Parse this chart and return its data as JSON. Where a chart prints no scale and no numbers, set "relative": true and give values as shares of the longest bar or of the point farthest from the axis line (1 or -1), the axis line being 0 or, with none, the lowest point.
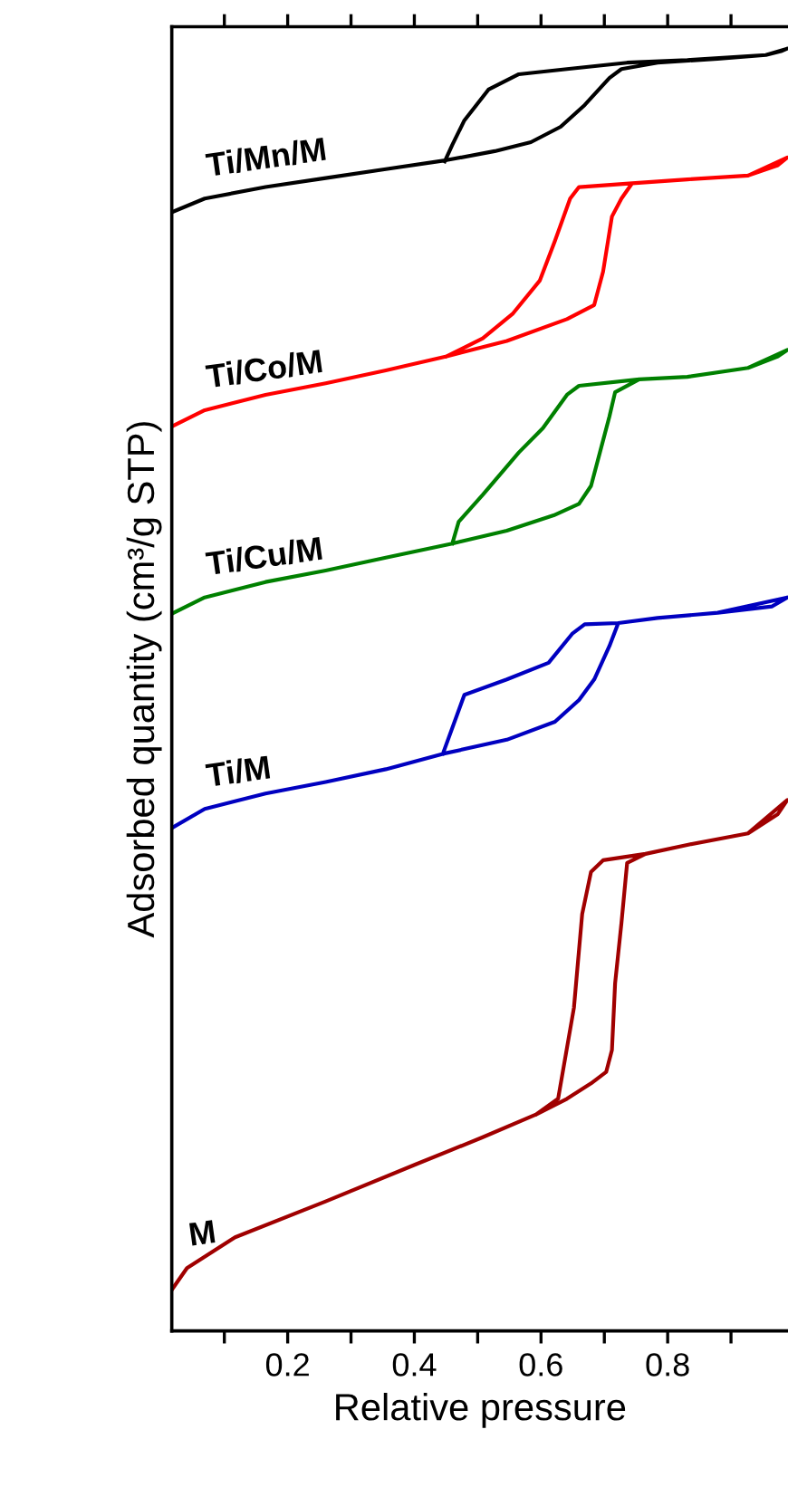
{
  "chart_data": {
    "type": "line",
    "relative": true,
    "xlabel": "Relative pressure",
    "ylabel": "Adsorbed quantity (cm³/g STP)",
    "xlim": [
      0.017,
      0.99
    ],
    "xticks": [
      {
        "value": 0.1,
        "label": null
      },
      0.2,
      {
        "value": 0.3,
        "label": null
      },
      0.4,
      {
        "value": 0.5,
        "label": null
      },
      0.6,
      {
        "value": 0.7,
        "label": null
      },
      0.8,
      {
        "value": 0.9,
        "label": null
      }
    ],
    "tick_labels": "x",
    "grid": false,
    "legend": false,
    "marker": "none",
    "line_style": "solid",
    "series": [
      {
        "name": "Ti/Mn/M",
        "color": "#000000",
        "x": [
          0.02,
          0.069,
          0.165,
          0.26,
          0.355,
          0.451,
          0.527,
          0.584,
          0.631,
          0.669,
          0.708,
          0.727,
          0.784,
          0.879,
          0.955,
          0.979,
          0.989,
          0.955,
          0.831,
          0.736,
          0.641,
          0.565,
          0.517,
          0.479,
          0.46,
          0.448
        ],
        "values": [
          0.873,
          0.883,
          0.892,
          0.899,
          0.906,
          0.913,
          0.92,
          0.927,
          0.939,
          0.956,
          0.977,
          0.984,
          0.989,
          0.992,
          0.995,
          0.998,
          1.0,
          0.995,
          0.991,
          0.989,
          0.984,
          0.98,
          0.968,
          0.944,
          0.925,
          0.912
        ]
      },
      {
        "name": "Ti/Co/M",
        "color": "#ff0000",
        "x": [
          0.02,
          0.069,
          0.165,
          0.26,
          0.355,
          0.451,
          0.546,
          0.641,
          0.684,
          0.698,
          0.712,
          0.727,
          0.744,
          0.831,
          0.927,
          0.974,
          0.989,
          0.927,
          0.831,
          0.744,
          0.66,
          0.646,
          0.622,
          0.598,
          0.555,
          0.508,
          0.451
        ],
        "values": [
          0.706,
          0.718,
          0.73,
          0.739,
          0.749,
          0.76,
          0.772,
          0.789,
          0.8,
          0.826,
          0.869,
          0.883,
          0.895,
          0.898,
          0.901,
          0.909,
          0.915,
          0.901,
          0.898,
          0.895,
          0.892,
          0.883,
          0.85,
          0.819,
          0.793,
          0.774,
          0.76
        ]
      },
      {
        "name": "Ti/Cu/M",
        "color": "#008000",
        "x": [
          0.02,
          0.069,
          0.165,
          0.26,
          0.355,
          0.46,
          0.546,
          0.62,
          0.66,
          0.679,
          0.693,
          0.708,
          0.717,
          0.755,
          0.831,
          0.927,
          0.974,
          0.989,
          0.927,
          0.831,
          0.755,
          0.66,
          0.641,
          0.603,
          0.565,
          0.508,
          0.47,
          0.46
        ],
        "values": [
          0.56,
          0.572,
          0.584,
          0.593,
          0.603,
          0.614,
          0.624,
          0.636,
          0.645,
          0.659,
          0.685,
          0.713,
          0.732,
          0.742,
          0.744,
          0.751,
          0.76,
          0.765,
          0.751,
          0.744,
          0.742,
          0.737,
          0.73,
          0.704,
          0.685,
          0.652,
          0.631,
          0.614
        ]
      },
      {
        "name": "Ti/M",
        "color": "#0000c0",
        "x": [
          0.02,
          0.069,
          0.165,
          0.26,
          0.355,
          0.445,
          0.546,
          0.622,
          0.66,
          0.684,
          0.708,
          0.722,
          0.784,
          0.879,
          0.965,
          0.989,
          0.879,
          0.784,
          0.722,
          0.669,
          0.65,
          0.612,
          0.546,
          0.479,
          0.445
        ],
        "values": [
          0.393,
          0.407,
          0.419,
          0.428,
          0.438,
          0.45,
          0.461,
          0.475,
          0.492,
          0.508,
          0.534,
          0.552,
          0.556,
          0.56,
          0.565,
          0.572,
          0.56,
          0.556,
          0.552,
          0.551,
          0.544,
          0.521,
          0.508,
          0.496,
          0.45
        ]
      },
      {
        "name": "M",
        "color": "#a00000",
        "x": [
          0.017,
          0.041,
          0.117,
          0.26,
          0.403,
          0.508,
          0.593,
          0.641,
          0.679,
          0.703,
          0.712,
          0.717,
          0.727,
          0.736,
          0.765,
          0.831,
          0.927,
          0.974,
          0.989,
          0.927,
          0.831,
          0.765,
          0.698,
          0.679,
          0.665,
          0.652,
          0.627,
          0.593
        ],
        "values": [
          0.032,
          0.049,
          0.073,
          0.101,
          0.13,
          0.151,
          0.169,
          0.181,
          0.193,
          0.202,
          0.219,
          0.271,
          0.318,
          0.365,
          0.372,
          0.379,
          0.388,
          0.403,
          0.414,
          0.388,
          0.379,
          0.372,
          0.367,
          0.358,
          0.325,
          0.252,
          0.181,
          0.169
        ]
      }
    ]
  }
}
